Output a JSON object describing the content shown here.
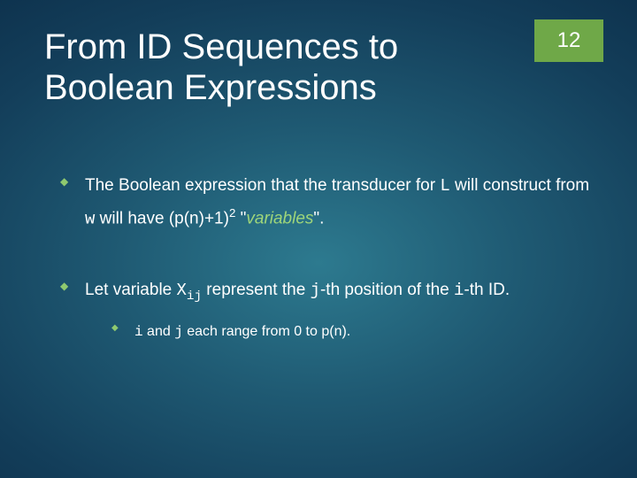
{
  "page_number": "12",
  "title": "From ID Sequences to Boolean Expressions",
  "colors": {
    "badge_bg": "#6fa848",
    "bullet": "#8fc96f",
    "accent": "#9fd67a",
    "text": "#ffffff"
  },
  "bullets": {
    "b1": {
      "pre": "The Boolean expression that the transducer for ",
      "L": "L",
      "mid1": " will construct from ",
      "w": "w",
      "mid2": " will have ",
      "formula_open": "(p(n)+1)",
      "exp": "2",
      "quote_open": " \"",
      "variables": "variables",
      "quote_close": "\"."
    },
    "b2": {
      "pre": "Let variable ",
      "X": "X",
      "ij": "ij",
      "mid1": " represent the ",
      "j": "j",
      "mid2": "-th position of the ",
      "i": "i",
      "mid3": "-th ID."
    },
    "sub1": {
      "i": "i",
      "and": " and ",
      "j": "j",
      "tail": " each range from 0 to p(n)."
    }
  }
}
